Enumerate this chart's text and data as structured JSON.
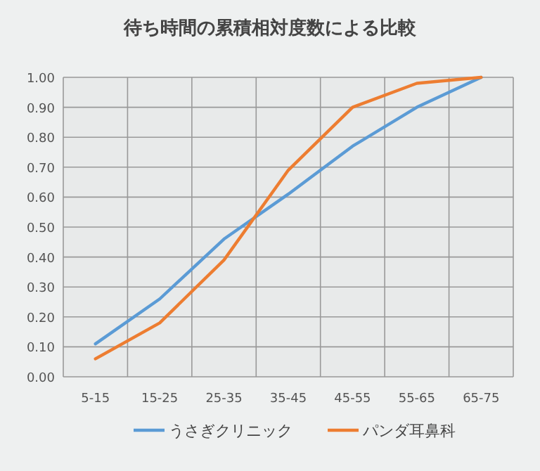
{
  "chart_data": {
    "type": "line",
    "title": "待ち時間の累積相対度数による比較",
    "categories": [
      "5-15",
      "15-25",
      "25-35",
      "35-45",
      "45-55",
      "55-65",
      "65-75"
    ],
    "series": [
      {
        "name": "うさぎクリニック",
        "color": "#5b9bd5",
        "values": [
          0.11,
          0.26,
          0.46,
          0.61,
          0.77,
          0.9,
          1.0
        ]
      },
      {
        "name": "パンダ耳鼻科",
        "color": "#ed7d31",
        "values": [
          0.06,
          0.18,
          0.39,
          0.69,
          0.9,
          0.98,
          1.0
        ]
      }
    ],
    "ylim": [
      0,
      1
    ],
    "yticks": [
      {
        "value": 0,
        "label": "0.00"
      },
      {
        "value": 0.1,
        "label": "0.10"
      },
      {
        "value": 0.2,
        "label": "0.20"
      },
      {
        "value": 0.3,
        "label": "0.30"
      },
      {
        "value": 0.4,
        "label": "0.40"
      },
      {
        "value": 0.5,
        "label": "0.50"
      },
      {
        "value": 0.6,
        "label": "0.60"
      },
      {
        "value": 0.7,
        "label": "0.70"
      },
      {
        "value": 0.8,
        "label": "0.80"
      },
      {
        "value": 0.9,
        "label": "0.90"
      },
      {
        "value": 1,
        "label": "1.00"
      }
    ],
    "grid": true,
    "legend": "bottom",
    "marker": "none",
    "line_style": "solid"
  }
}
